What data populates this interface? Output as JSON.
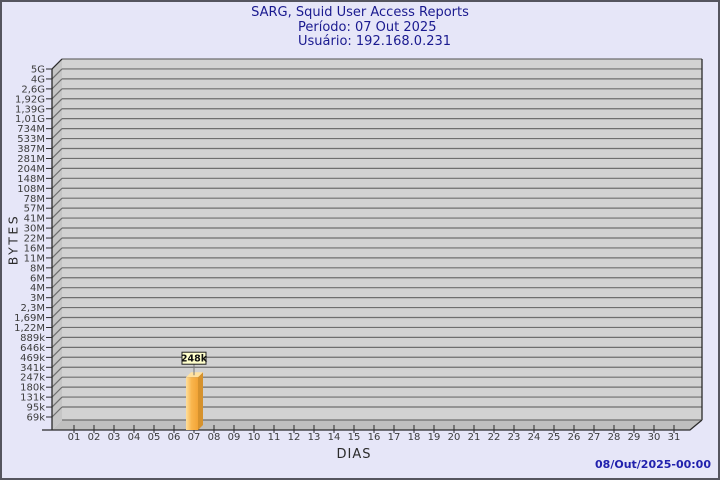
{
  "header": {
    "title": "SARG, Squid User Access Reports",
    "period": "Período: 07 Out 2025",
    "user": "Usuário: 192.168.0.231"
  },
  "footer": {
    "generated": "08/Out/2025-00:00"
  },
  "chart_data": {
    "type": "bar",
    "title": "SARG, Squid User Access Reports",
    "subtitle": [
      "Período: 07 Out 2025",
      "Usuário: 192.168.0.231"
    ],
    "xlabel": "DIAS",
    "ylabel": "BYTES",
    "y_scale": "log",
    "grid": true,
    "x_categories": [
      "01",
      "02",
      "03",
      "04",
      "05",
      "06",
      "07",
      "08",
      "09",
      "10",
      "11",
      "12",
      "13",
      "14",
      "15",
      "16",
      "17",
      "18",
      "19",
      "20",
      "21",
      "22",
      "23",
      "24",
      "25",
      "26",
      "27",
      "28",
      "29",
      "30",
      "31"
    ],
    "y_tick_labels": [
      "5G",
      "4G",
      "2,6G",
      "1,92G",
      "1,39G",
      "1,01G",
      "734M",
      "533M",
      "387M",
      "281M",
      "204M",
      "148M",
      "108M",
      "78M",
      "57M",
      "41M",
      "30M",
      "22M",
      "16M",
      "11M",
      "8M",
      "6M",
      "4M",
      "3M",
      "2,3M",
      "1,69M",
      "1,22M",
      "889k",
      "646k",
      "469k",
      "341k",
      "247k",
      "180k",
      "131k",
      "95k",
      "69k"
    ],
    "ylim_bytes": [
      69000,
      5000000000
    ],
    "bars": [
      {
        "category": "07",
        "value_label": "248k",
        "value_bytes": 248000
      }
    ],
    "colors": {
      "page_bg": "#e6e6f8",
      "plot_bg": "#d2d2d2",
      "wall": "#c5c5c5",
      "floor": "#bfbfbf",
      "grid": "#6e6e6e",
      "axis": "#2b2b2b",
      "tick_text": "#3c3c3c",
      "bar_light": "#ffdf9c",
      "bar_front": "#f9b64e",
      "bar_dark": "#f2a436",
      "bar_side": "#d6922d",
      "bar_topface": "#ffe1a0",
      "callout_bg": "#ffffcc",
      "title_text": "#1a1a8f",
      "footer_text": "#2121ad"
    }
  }
}
